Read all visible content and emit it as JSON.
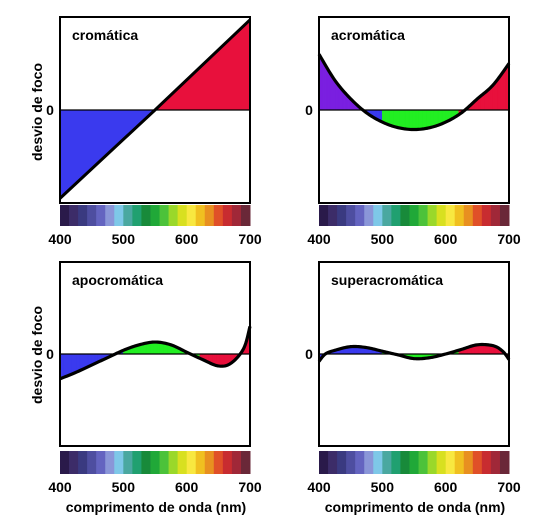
{
  "y_axis_label": "desvio de foco",
  "x_axis_label": "comprimento de onda (nm)",
  "colors": {
    "positive_red": "#e8103c",
    "negative_blue": "#3a3aee",
    "green": "#22ee22",
    "violet": "#7a1fe0",
    "curve": "#000000"
  },
  "spectrum_colors": [
    "#2a1a4a",
    "#3c2c68",
    "#3a3a80",
    "#4e4ea0",
    "#6464c0",
    "#8a96d8",
    "#7ec8e8",
    "#4aa8a0",
    "#20a070",
    "#188a3a",
    "#20a838",
    "#4cc23a",
    "#9ad82a",
    "#d8e020",
    "#f8e840",
    "#f0c020",
    "#e89020",
    "#e05028",
    "#c82c30",
    "#a02838",
    "#6a2838"
  ],
  "chart_data": [
    {
      "type": "area",
      "title": "cromática",
      "xlim": [
        400,
        700
      ],
      "ylim": [
        -1,
        1
      ],
      "x_ticks": [
        400,
        500,
        600,
        700
      ],
      "y_ticks": [
        0
      ],
      "series": [
        {
          "x": [
            400,
            550,
            700
          ],
          "y": [
            -0.95,
            0,
            0.97
          ]
        }
      ]
    },
    {
      "type": "area",
      "title": "acromática",
      "xlim": [
        400,
        700
      ],
      "ylim": [
        -1,
        1
      ],
      "x_ticks": [
        400,
        500,
        600,
        700
      ],
      "y_ticks": [
        0
      ],
      "series": [
        {
          "x": [
            400,
            425,
            450,
            475,
            500,
            525,
            550,
            575,
            600,
            625,
            650,
            675,
            700
          ],
          "y": [
            0.6,
            0.32,
            0.12,
            -0.03,
            -0.13,
            -0.19,
            -0.21,
            -0.19,
            -0.13,
            -0.03,
            0.12,
            0.27,
            0.5
          ]
        }
      ]
    },
    {
      "type": "area",
      "title": "apocromática",
      "xlim": [
        400,
        700
      ],
      "ylim": [
        -1,
        1
      ],
      "x_ticks": [
        400,
        500,
        600,
        700
      ],
      "y_ticks": [
        0
      ],
      "series": [
        {
          "x": [
            400,
            425,
            450,
            475,
            500,
            525,
            550,
            575,
            600,
            625,
            650,
            670,
            690,
            700
          ],
          "y": [
            -0.27,
            -0.2,
            -0.12,
            -0.04,
            0.04,
            0.1,
            0.13,
            0.1,
            0.02,
            -0.06,
            -0.13,
            -0.1,
            0.06,
            0.3
          ]
        }
      ]
    },
    {
      "type": "area",
      "title": "superacromática",
      "xlim": [
        400,
        700
      ],
      "ylim": [
        -1,
        1
      ],
      "x_ticks": [
        400,
        500,
        600,
        700
      ],
      "y_ticks": [
        0
      ],
      "series": [
        {
          "x": [
            400,
            410,
            425,
            450,
            475,
            500,
            525,
            550,
            575,
            600,
            625,
            650,
            675,
            690,
            700
          ],
          "y": [
            -0.08,
            0.0,
            0.04,
            0.08,
            0.07,
            0.03,
            -0.01,
            -0.05,
            -0.04,
            0.0,
            0.05,
            0.1,
            0.09,
            0.03,
            -0.06
          ]
        }
      ]
    }
  ]
}
